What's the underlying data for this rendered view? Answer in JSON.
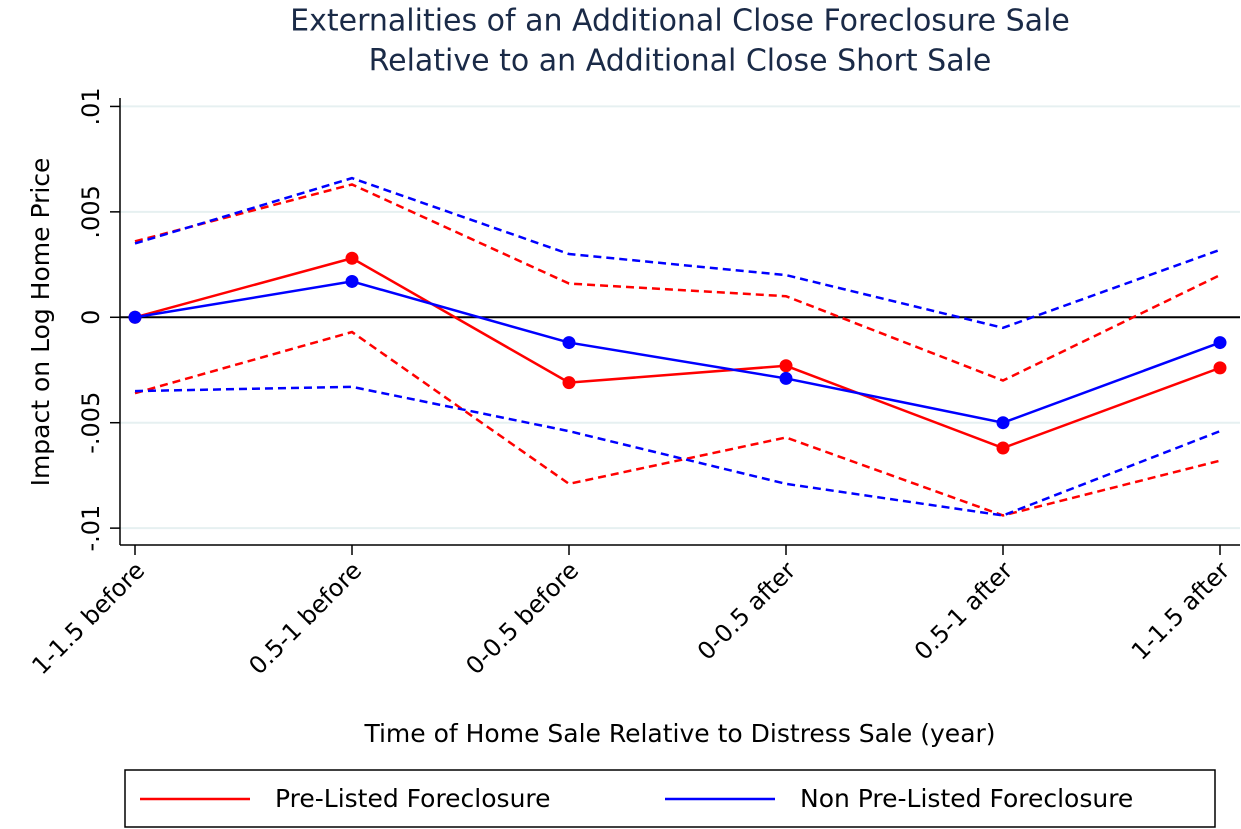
{
  "chart_data": {
    "type": "line",
    "title": [
      "Externalities of an Additional Close Foreclosure Sale",
      "Relative to an Additional Close Short Sale"
    ],
    "x_label": "Time of Home Sale Relative to Distress Sale (year)",
    "y_label": "Impact on Log Home Price",
    "categories": [
      "1-1.5 before",
      "0.5-1 before",
      "0-0.5 before",
      "0-0.5 after",
      "0.5-1 after",
      "1-1.5 after"
    ],
    "series": [
      {
        "name": "Pre-Listed Foreclosure",
        "color": "#ff0000",
        "values": [
          0,
          0.0028,
          -0.0031,
          -0.0023,
          -0.0062,
          -0.0024
        ],
        "ci_upper": [
          0.0036,
          0.0063,
          0.0016,
          0.001,
          -0.003,
          0.002
        ],
        "ci_lower": [
          -0.0036,
          -0.0007,
          -0.0079,
          -0.0057,
          -0.0094,
          -0.0068
        ]
      },
      {
        "name": "Non Pre-Listed Foreclosure",
        "color": "#0000ff",
        "values": [
          0,
          0.0017,
          -0.0012,
          -0.0029,
          -0.005,
          -0.0012
        ],
        "ci_upper": [
          0.0035,
          0.0066,
          0.003,
          0.002,
          -0.0005,
          0.0032
        ],
        "ci_lower": [
          -0.0035,
          -0.0033,
          -0.0054,
          -0.0079,
          -0.0094,
          -0.0054
        ]
      }
    ],
    "ylim": [
      -0.0108,
      0.0104
    ],
    "yticks": [
      {
        "value": -0.01,
        "label": "-.01"
      },
      {
        "value": -0.005,
        "label": "-.005"
      },
      0,
      {
        "value": 0.005,
        "label": ".005"
      },
      {
        "value": 0.01,
        "label": ".01"
      }
    ],
    "grid": true,
    "legend": "bottom"
  }
}
